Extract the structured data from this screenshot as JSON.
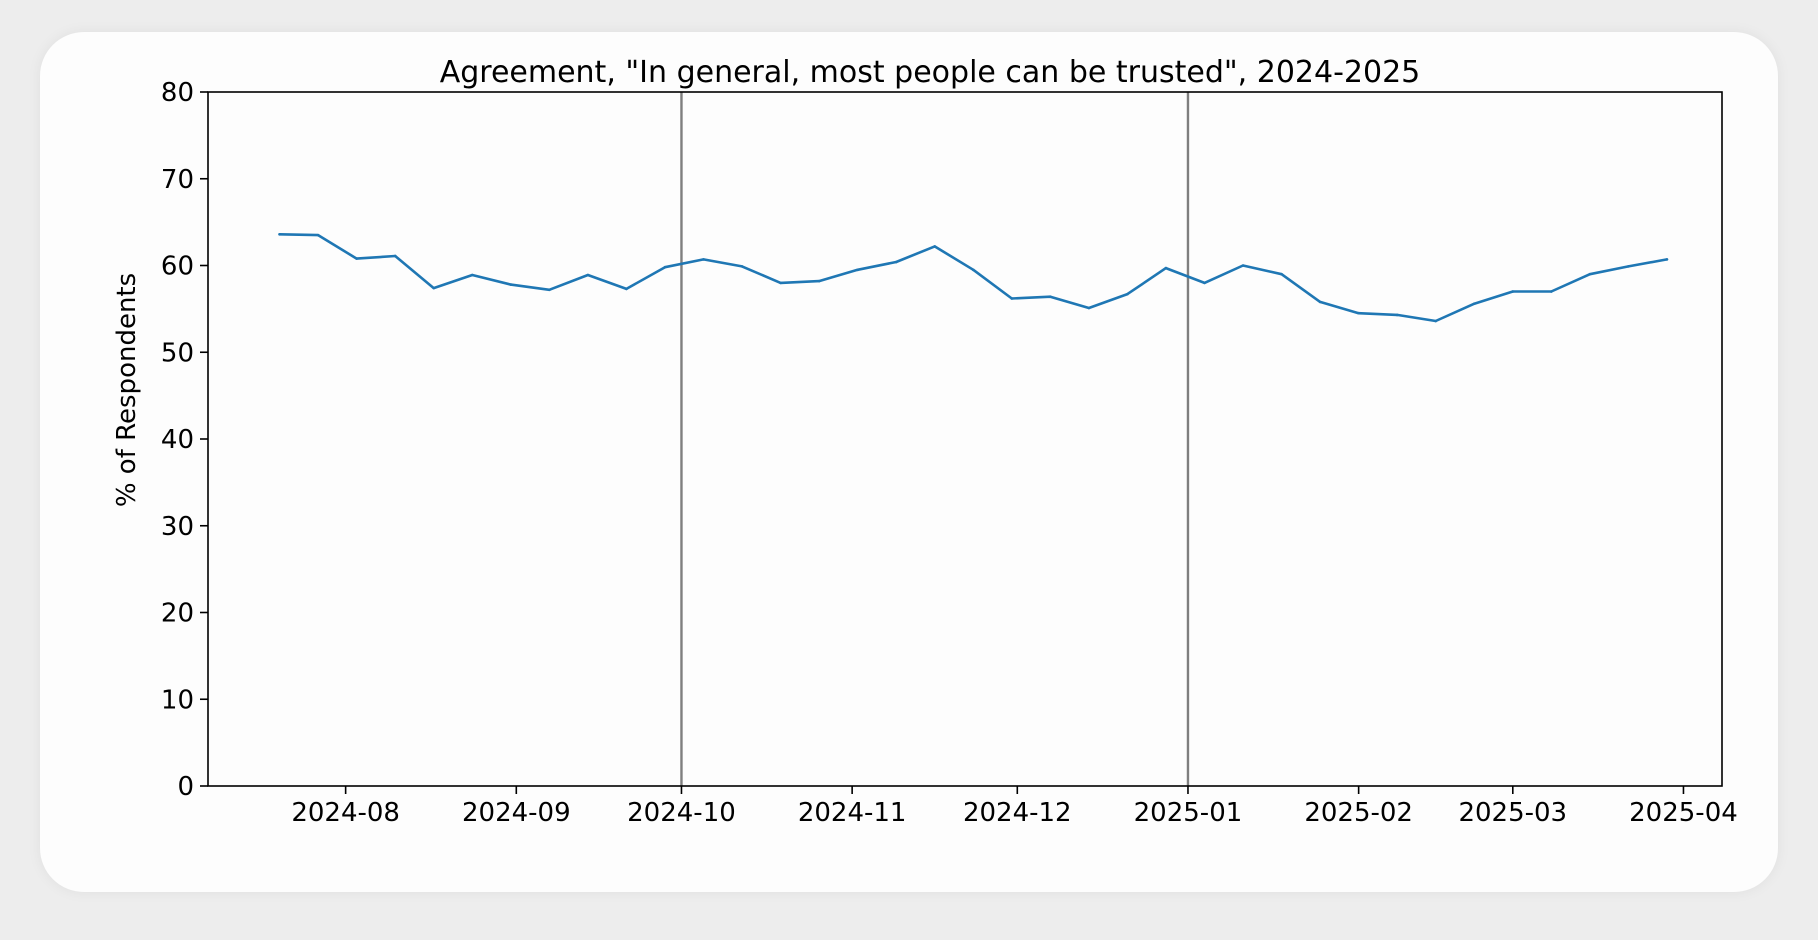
{
  "chart_data": {
    "type": "line",
    "title": "Agreement, \"In general, most people can be trusted\", 2024-2025",
    "xlabel": "",
    "ylabel": "% of Respondents",
    "ylim": [
      0,
      80
    ],
    "yticks": [
      0,
      10,
      20,
      30,
      40,
      50,
      60,
      70,
      80
    ],
    "xlim": [
      "2024-07-07",
      "2025-04-08"
    ],
    "xticks": [
      "2024-08-01",
      "2024-09-01",
      "2024-10-01",
      "2024-11-01",
      "2024-12-01",
      "2025-01-01",
      "2025-02-01",
      "2025-03-01",
      "2025-04-01"
    ],
    "xtick_labels": [
      "2024-08",
      "2024-09",
      "2024-10",
      "2024-11",
      "2024-12",
      "2025-01",
      "2025-02",
      "2025-03",
      "2025-04"
    ],
    "vlines": [
      "2024-10-01",
      "2025-01-01"
    ],
    "grid": false,
    "series": [
      {
        "color": "#1f77b4",
        "x": [
          "2024-07-20",
          "2024-07-27",
          "2024-08-03",
          "2024-08-10",
          "2024-08-17",
          "2024-08-24",
          "2024-08-31",
          "2024-09-07",
          "2024-09-14",
          "2024-09-21",
          "2024-09-28",
          "2024-10-05",
          "2024-10-12",
          "2024-10-19",
          "2024-10-26",
          "2024-11-02",
          "2024-11-09",
          "2024-11-16",
          "2024-11-23",
          "2024-11-30",
          "2024-12-07",
          "2024-12-14",
          "2024-12-21",
          "2024-12-28",
          "2025-01-04",
          "2025-01-11",
          "2025-01-18",
          "2025-01-25",
          "2025-02-01",
          "2025-02-08",
          "2025-02-15",
          "2025-02-22",
          "2025-03-01",
          "2025-03-08",
          "2025-03-15",
          "2025-03-22",
          "2025-03-29"
        ],
        "values": [
          63.6,
          63.5,
          60.8,
          61.1,
          57.4,
          58.9,
          57.8,
          57.2,
          58.9,
          57.3,
          59.8,
          60.7,
          59.9,
          58.0,
          58.2,
          59.5,
          60.4,
          62.2,
          59.5,
          56.2,
          56.4,
          55.1,
          56.7,
          59.7,
          58.0,
          60.0,
          59.0,
          55.8,
          54.5,
          54.3,
          53.6,
          55.6,
          57.0,
          57.0,
          59.0,
          59.9,
          60.7
        ]
      }
    ]
  }
}
